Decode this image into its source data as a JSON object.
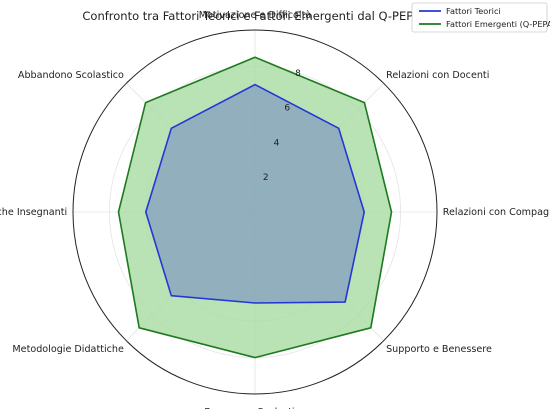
{
  "chart_data": {
    "type": "radar",
    "title": "Confronto tra Fattori Teorici e Fattori Emergenti dal Q-PEPAS",
    "categories": [
      "Motivazione e Difficoltà",
      "Relazioni con Docenti",
      "Relazioni con Compagni",
      "Supporto e Benessere",
      "Benessere Scolastico",
      "Metodologie Didattiche",
      "Caratteristiche Insegnanti",
      "Abbandono Scolastico"
    ],
    "series": [
      {
        "name": "Fattori Teorici",
        "values": [
          7,
          6.5,
          6,
          7,
          5,
          6.5,
          6,
          6.5
        ],
        "color": "#2437d6",
        "fill": "#8aa4bf"
      },
      {
        "name": "Fattori Emergenti (Q-PEPAS)",
        "values": [
          8.5,
          8.5,
          7.5,
          9,
          8,
          9,
          7.5,
          8.5
        ],
        "color": "#1e7a1e",
        "fill": "#a9dca5"
      }
    ],
    "rticks": [
      2,
      4,
      6,
      8
    ],
    "rlim": [
      0,
      10
    ],
    "grid": true,
    "legend_position": "top-right"
  }
}
